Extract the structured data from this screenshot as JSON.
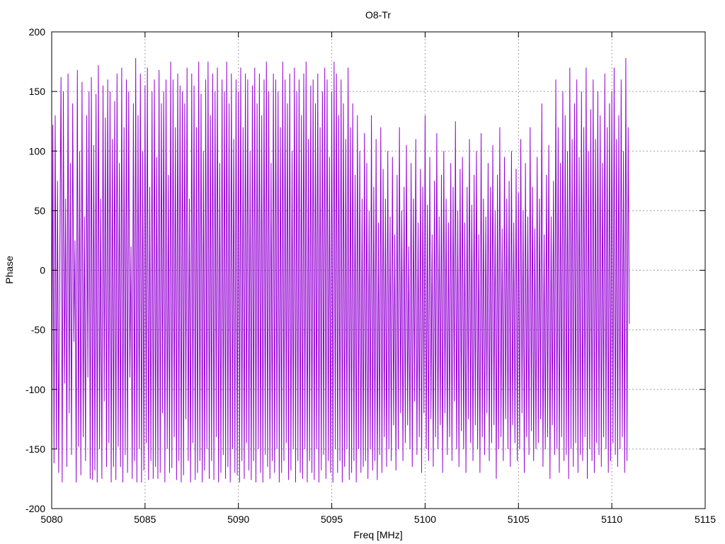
{
  "chart_data": {
    "type": "line",
    "title": "O8-Tr",
    "xlabel": "Freq [MHz]",
    "ylabel": "Phase",
    "xlim": [
      5080,
      5115
    ],
    "ylim": [
      -200,
      200
    ],
    "x_ticks": [
      5080,
      5085,
      5090,
      5095,
      5100,
      5105,
      5110,
      5115
    ],
    "y_ticks": [
      -200,
      -150,
      -100,
      -50,
      0,
      50,
      100,
      150,
      200
    ],
    "x_tick_labels": [
      "5080",
      "5085",
      "5090",
      "5095",
      "5100",
      "5105",
      "5110",
      "5115"
    ],
    "y_tick_labels": [
      "-200",
      "-150",
      "-100",
      "-50",
      "0",
      "50",
      "100",
      "150",
      "200"
    ],
    "grid": true,
    "series": [
      {
        "color": "#9400D3",
        "x_start": 5080,
        "x_step": 0.0625,
        "values": [
          -155,
          122,
          -162,
          130,
          -150,
          75,
          -170,
          20,
          162,
          -178,
          150,
          -95,
          60,
          -165,
          165,
          -120,
          90,
          -155,
          140,
          -60,
          25,
          -178,
          168,
          -148,
          100,
          -172,
          158,
          -140,
          45,
          -160,
          130,
          -90,
          150,
          -175,
          162,
          -176,
          105,
          -168,
          148,
          -178,
          172,
          -150,
          60,
          -175,
          155,
          -110,
          128,
          -165,
          160,
          -145,
          150,
          -178,
          110,
          -165,
          142,
          -176,
          165,
          -148,
          90,
          -165,
          170,
          -178,
          120,
          -155,
          160,
          -170,
          150,
          -90,
          20,
          -175,
          140,
          -160,
          178,
          -178,
          130,
          -150,
          165,
          -178,
          100,
          -168,
          155,
          -145,
          170,
          -176,
          70,
          -160,
          150,
          -175,
          160,
          -165,
          95,
          -175,
          168,
          -170,
          140,
          -120,
          150,
          -178,
          160,
          -150,
          80,
          -170,
          175,
          -166,
          160,
          -140,
          120,
          -176,
          165,
          -160,
          155,
          -178,
          150,
          -172,
          140,
          -125,
          170,
          -160,
          60,
          -178,
          165,
          -145,
          155,
          -176,
          120,
          -170,
          175,
          -160,
          148,
          -178,
          100,
          -168,
          160,
          -150,
          175,
          -175,
          130,
          -160,
          165,
          -176,
          150,
          -140,
          170,
          -178,
          90,
          -170,
          160,
          -155,
          150,
          -175,
          175,
          -165,
          140,
          -178,
          165,
          -150,
          110,
          -170,
          160,
          -172,
          150,
          -178,
          170,
          -160,
          120,
          -175,
          165,
          -145,
          160,
          -168,
          100,
          -176,
          155,
          -160,
          170,
          -178,
          140,
          -150,
          165,
          -170,
          130,
          -178,
          160,
          -155,
          175,
          -165,
          150,
          -175,
          90,
          -160,
          165,
          -170,
          160,
          -150,
          150,
          -178,
          120,
          -170,
          175,
          -160,
          160,
          -145,
          140,
          -176,
          165,
          -168,
          100,
          -150,
          170,
          -178,
          150,
          -160,
          160,
          -170,
          130,
          -175,
          165,
          -150,
          175,
          -178,
          110,
          -160,
          155,
          -170,
          160,
          -176,
          140,
          -150,
          165,
          -178,
          120,
          -168,
          150,
          -155,
          170,
          -175,
          160,
          -160,
          95,
          -170,
          150,
          -178,
          175,
          -150,
          165,
          -170,
          130,
          -160,
          160,
          -178,
          140,
          -165,
          110,
          -150,
          170,
          -176,
          120,
          -170,
          140,
          -160,
          80,
          -178,
          130,
          -150,
          100,
          -170,
          60,
          -165,
          115,
          -160,
          90,
          -175,
          50,
          -150,
          130,
          -168,
          70,
          -160,
          110,
          -176,
          40,
          -155,
          120,
          -170,
          85,
          -140,
          60,
          -165,
          100,
          -150,
          45,
          -160,
          95,
          -130,
          30,
          -168,
          80,
          -150,
          120,
          -120,
          50,
          -160,
          70,
          -145,
          105,
          -130,
          20,
          -150,
          90,
          -165,
          60,
          -110,
          110,
          -155,
          40,
          -140,
          85,
          -170,
          70,
          -120,
          130,
          -150,
          55,
          -160,
          95,
          -125,
          30,
          -165,
          75,
          -140,
          115,
          -150,
          45,
          -130,
          80,
          -170,
          100,
          -120,
          60,
          -155,
          40,
          -140,
          90,
          -160,
          70,
          -110,
          125,
          -150,
          50,
          -165,
          85,
          -135,
          95,
          -150,
          40,
          -170,
          70,
          -125,
          110,
          -145,
          55,
          -160,
          80,
          -130,
          100,
          -150,
          30,
          -170,
          115,
          -140,
          60,
          -155,
          45,
          -120,
          90,
          -160,
          70,
          -145,
          105,
          -130,
          50,
          -175,
          80,
          -150,
          120,
          -140,
          35,
          -160,
          95,
          -125,
          60,
          -150,
          75,
          -165,
          100,
          -130,
          40,
          -145,
          85,
          -160,
          65,
          -150,
          110,
          -120,
          50,
          -170,
          90,
          -140,
          45,
          -155,
          120,
          -135,
          70,
          -160,
          35,
          -150,
          95,
          -145,
          60,
          -125,
          140,
          -165,
          30,
          -150,
          80,
          -140,
          105,
          -175,
          45,
          -130,
          75,
          -155,
          160,
          -150,
          120,
          -170,
          90,
          -140,
          150,
          -160,
          130,
          -155,
          100,
          -175,
          170,
          -150,
          110,
          -165,
          140,
          -145,
          160,
          -170,
          95,
          -155,
          150,
          -160,
          120,
          -140,
          170,
          -175,
          100,
          -150,
          135,
          -160,
          160,
          -170,
          110,
          -145,
          150,
          -155,
          130,
          -165,
          90,
          -140,
          165,
          -150,
          120,
          -170,
          140,
          -160,
          150,
          -145,
          170,
          -155,
          110,
          -165,
          130,
          -150,
          160,
          -140,
          100,
          -170,
          178,
          -160,
          120,
          -45
        ]
      }
    ]
  }
}
